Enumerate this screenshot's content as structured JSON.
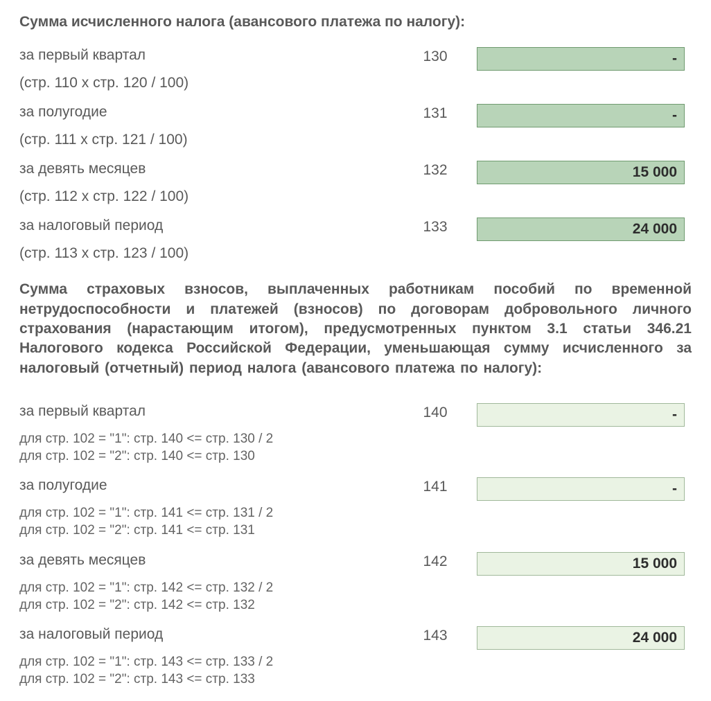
{
  "section1": {
    "title": "Сумма исчисленного налога (авансового платежа по налогу):",
    "box_bg": "#b8d4b8",
    "box_border": "#6f9a6f",
    "rows": [
      {
        "label": "за первый квартал",
        "sub": "(стр. 110 х стр. 120 / 100)",
        "code": "130",
        "value": "-"
      },
      {
        "label": "за полугодие",
        "sub": "(стр. 111 х стр. 121 / 100)",
        "code": "131",
        "value": "-"
      },
      {
        "label": "за девять месяцев",
        "sub": "(стр. 112 х стр. 122 / 100)",
        "code": "132",
        "value": "15 000"
      },
      {
        "label": "за налоговый период",
        "sub": "(стр. 113 х стр. 123 / 100)",
        "code": "133",
        "value": "24 000"
      }
    ]
  },
  "section2": {
    "title": "Сумма  страховых  взносов,  выплаченных  работникам пособий  по  временной нетрудоспособности  и  платежей (взносов)  по  договорам  добровольного личного страхования  (нарастающим  итогом), предусмотренных пунктом 3.1 статьи 346.21 Налогового кодекса Российской Федерации, уменьшающая сумму исчисленного  за  налоговый  (отчетный)  период  налога (авансового платежа по налогу):",
    "box_bg": "#eaf3e4",
    "box_border": "#a0b89a",
    "rows": [
      {
        "label": "за первый квартал",
        "hint1": "для стр. 102 = \"1\": стр. 140 <= стр. 130 / 2",
        "hint2": "для стр. 102 = \"2\": стр. 140 <= стр. 130",
        "code": "140",
        "value": "-"
      },
      {
        "label": "за полугодие",
        "hint1": "для стр. 102 = \"1\": стр. 141 <= стр. 131 / 2",
        "hint2": "для стр. 102 = \"2\": стр. 141 <= стр. 131",
        "code": "141",
        "value": "-"
      },
      {
        "label": "за девять месяцев",
        "hint1": "для стр. 102 = \"1\": стр. 142 <= стр. 132 / 2",
        "hint2": "для стр. 102 = \"2\": стр. 142 <= стр. 132",
        "code": "142",
        "value": "15 000"
      },
      {
        "label": "за налоговый период",
        "hint1": "для стр. 102 = \"1\": стр. 143 <= стр. 133 / 2",
        "hint2": "для стр. 102 = \"2\": стр. 143 <= стр. 133",
        "code": "143",
        "value": "24 000"
      }
    ]
  }
}
